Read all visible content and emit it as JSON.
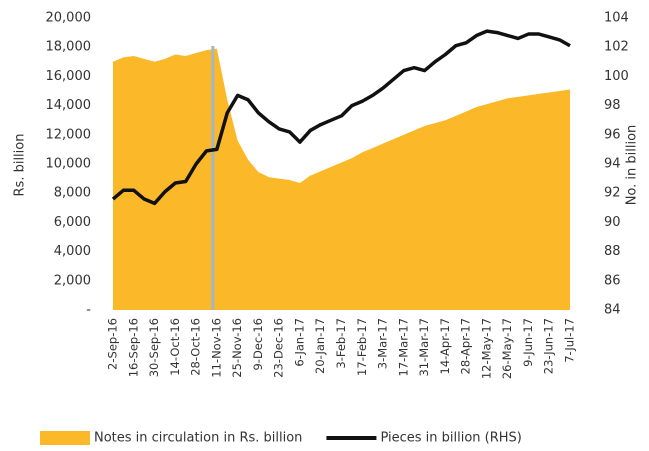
{
  "chart_data": {
    "type": "area_line",
    "categories": [
      "2-Sep-16",
      null,
      "16-Sep-16",
      null,
      "30-Sep-16",
      null,
      "14-Oct-16",
      null,
      "28-Oct-16",
      null,
      "11-Nov-16",
      null,
      "25-Nov-16",
      null,
      "9-Dec-16",
      null,
      "23-Dec-16",
      null,
      "6-Jan-17",
      null,
      "20-Jan-17",
      null,
      "3-Feb-17",
      null,
      "17-Feb-17",
      null,
      "3-Mar-17",
      null,
      "17-Mar-17",
      null,
      "31-Mar-17",
      null,
      "14-Apr-17",
      null,
      "28-Apr-17",
      null,
      "12-May-17",
      null,
      "26-May-17",
      null,
      "9-Jun-17",
      null,
      "23-Jun-17",
      null,
      "7-Jul-17"
    ],
    "series": [
      {
        "name": "Notes in circulation in Rs. billion",
        "color": "#fbb829",
        "type": "area",
        "values": [
          17000,
          17300,
          17400,
          17200,
          17000,
          17200,
          17500,
          17400,
          17600,
          17800,
          17900,
          14400,
          11600,
          10300,
          9450,
          9100,
          9000,
          8900,
          8700,
          9200,
          9500,
          9800,
          10100,
          10400,
          10800,
          11100,
          11400,
          11700,
          12000,
          12300,
          12600,
          12800,
          13000,
          13300,
          13600,
          13900,
          14100,
          14300,
          14500,
          14600,
          14700,
          14800,
          14900,
          15000,
          15100
        ]
      },
      {
        "name": "Pieces in billion (RHS)",
        "color": "#111111",
        "type": "line",
        "axis": "y2",
        "values": [
          91.6,
          92.2,
          92.2,
          91.6,
          91.3,
          92.1,
          92.7,
          92.8,
          94.0,
          94.9,
          95.0,
          97.5,
          98.7,
          98.4,
          97.5,
          96.9,
          96.4,
          96.2,
          95.5,
          96.3,
          96.7,
          97.0,
          97.3,
          98.0,
          98.3,
          98.7,
          99.2,
          99.8,
          100.4,
          100.6,
          100.4,
          101.0,
          101.5,
          102.1,
          102.3,
          102.8,
          103.1,
          103.0,
          102.8,
          102.6,
          102.9,
          102.9,
          102.7,
          102.5,
          102.1
        ]
      }
    ],
    "ylabel": "Rs. billion",
    "y2label": "No. in billion",
    "ylim": [
      0,
      20000
    ],
    "yticks": [
      {
        "value": 0,
        "label": "-"
      },
      {
        "value": 2000,
        "label": "2,000"
      },
      {
        "value": 4000,
        "label": "4,000"
      },
      {
        "value": 6000,
        "label": "6,000"
      },
      {
        "value": 8000,
        "label": "8,000"
      },
      {
        "value": 10000,
        "label": "10,000"
      },
      {
        "value": 12000,
        "label": "12,000"
      },
      {
        "value": 14000,
        "label": "14,000"
      },
      {
        "value": 16000,
        "label": "16,000"
      },
      {
        "value": 18000,
        "label": "18,000"
      },
      {
        "value": 20000,
        "label": "20,000"
      }
    ],
    "y2lim": [
      84,
      104
    ],
    "y2ticks": [
      84,
      86,
      88,
      90,
      92,
      94,
      96,
      98,
      100,
      102,
      104
    ],
    "legend": "bottom"
  }
}
